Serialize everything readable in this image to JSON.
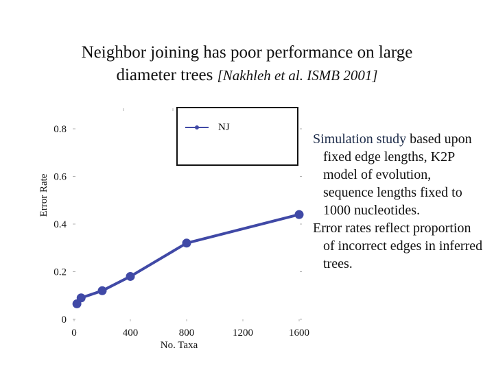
{
  "slide": {
    "title_line1": "Neighbor joining has poor performance on large",
    "title_line2": "diameter trees",
    "citation": "[Nakhleh et al. ISMB 2001]"
  },
  "notes": {
    "p1_highlight": "Simulation study",
    "p1_rest": " based upon fixed edge lengths, K2P model of evolution, sequence lengths fixed to 1000 nucleotides.",
    "p2": "Error rates reflect proportion of incorrect edges in inferred trees."
  },
  "chart_data": {
    "type": "line",
    "xlabel": "No. Taxa",
    "ylabel": "Error Rate",
    "xlim": [
      0,
      1600
    ],
    "ylim": [
      0,
      0.8
    ],
    "x_ticks": [
      0,
      400,
      800,
      1200,
      1600
    ],
    "x_tick_labels": [
      "0",
      "400",
      "800",
      "1200",
      "1600"
    ],
    "y_ticks": [
      0,
      0.2,
      0.4,
      0.6,
      0.8
    ],
    "y_tick_labels": [
      "0",
      "0.2",
      "0.4",
      "0.6",
      "0.8"
    ],
    "legend_position": "top",
    "series": [
      {
        "name": "NJ",
        "color": "#4049a6",
        "x": [
          20,
          50,
          200,
          400,
          800,
          1600
        ],
        "y": [
          0.065,
          0.09,
          0.12,
          0.18,
          0.32,
          0.44
        ]
      }
    ]
  }
}
